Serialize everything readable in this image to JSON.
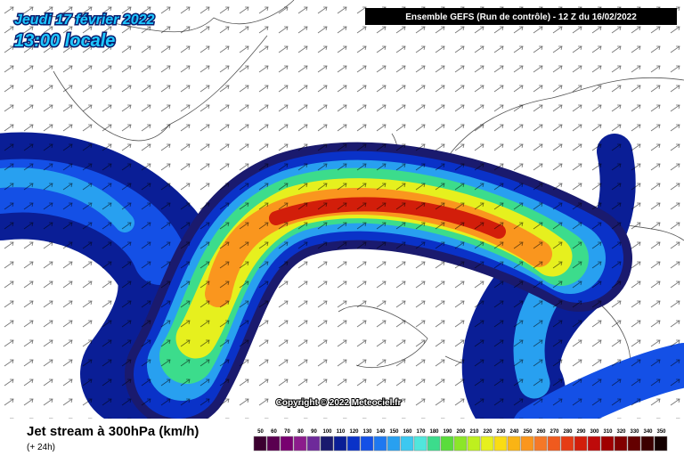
{
  "header": {
    "date": "Jeudi 17 février 2022",
    "time": "13:00 locale",
    "run": "Ensemble GEFS  (Run de contrôle)  -  12 Z du 16/02/2022"
  },
  "copyright": "Copyright © 2022 Meteociel.fr",
  "footer": {
    "title": "Jet stream à 300hPa (km/h)",
    "lead": "(+ 24h)"
  },
  "legend": {
    "values": [
      50,
      60,
      70,
      80,
      90,
      100,
      110,
      120,
      130,
      140,
      150,
      160,
      170,
      180,
      190,
      200,
      210,
      220,
      230,
      240,
      250,
      260,
      270,
      280,
      290,
      300,
      310,
      320,
      330,
      340,
      350
    ],
    "colors": [
      "#3c0030",
      "#5a0050",
      "#780070",
      "#8c1c8c",
      "#6e2a9a",
      "#1a1a6e",
      "#0a1e96",
      "#0a32c8",
      "#1450e6",
      "#1e78f0",
      "#28a0f0",
      "#3cc8f0",
      "#50e6dc",
      "#3cdc8c",
      "#5adc3c",
      "#8ce628",
      "#bef01e",
      "#e6f01e",
      "#fadc14",
      "#fab414",
      "#fa961e",
      "#f57828",
      "#f05a1e",
      "#e63c14",
      "#d21e0a",
      "#be0a0a",
      "#a00000",
      "#820000",
      "#640000",
      "#3c0000",
      "#140000"
    ]
  }
}
